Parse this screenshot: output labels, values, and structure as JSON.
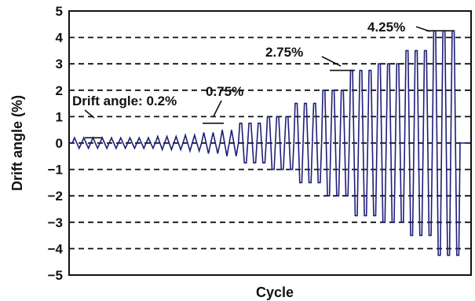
{
  "chart_data": {
    "type": "line",
    "xlabel": "Cycle",
    "ylabel": "Drift angle (%)",
    "ylim": [
      -5,
      5
    ],
    "yticks": [
      5,
      4,
      3,
      2,
      1,
      0,
      -1,
      -2,
      -3,
      -4,
      -5
    ],
    "grid": "horizontal-dashed",
    "colors": {
      "series": "#1f1f7a",
      "grid": "#111111",
      "axis": "#111111"
    },
    "series": [
      {
        "amplitudes": [
          0.2,
          0.2,
          0.2,
          0.2,
          0.2,
          0.2,
          0.2,
          0.2,
          0.2,
          0.25,
          0.25,
          0.25,
          0.3,
          0.3,
          0.4,
          0.4,
          0.5,
          0.5,
          0.75,
          0.75,
          0.75,
          1.0,
          1.0,
          1.0,
          1.5,
          1.5,
          1.5,
          2.0,
          2.0,
          2.0,
          2.75,
          2.75,
          2.75,
          3.0,
          3.0,
          3.0,
          3.5,
          3.5,
          3.5,
          4.25,
          4.25,
          4.25
        ]
      }
    ],
    "annotations": [
      {
        "text": "Drift angle: 0.2%",
        "value": 0.2
      },
      {
        "text": "0.75%",
        "value": 0.75
      },
      {
        "text": "2.75%",
        "value": 2.75
      },
      {
        "text": "4.25%",
        "value": 4.25
      }
    ]
  }
}
